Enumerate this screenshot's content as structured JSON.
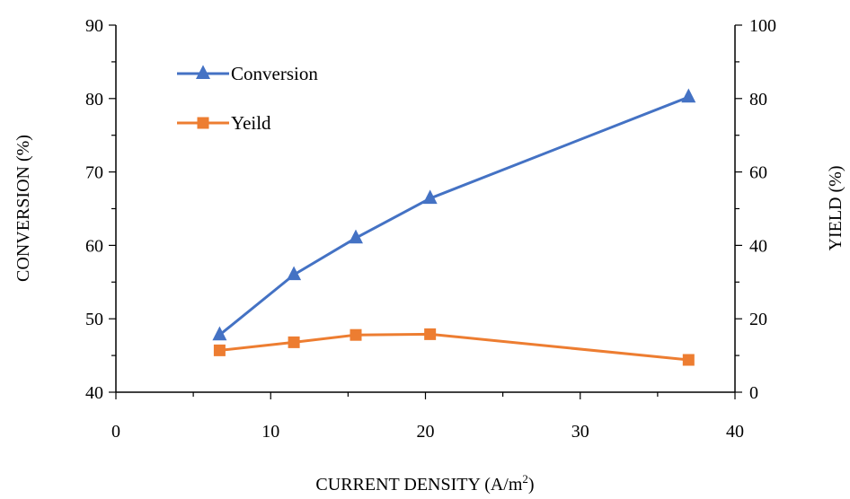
{
  "chart_data": {
    "type": "line",
    "xlabel": "CURRENT DENSITY (A/m",
    "xlabel_superscript": "2",
    "xlabel_suffix": ")",
    "ylabel_left": "CONVERSION (%)",
    "ylabel_right": "YIELD (%)",
    "xlim": [
      0,
      40
    ],
    "ylim_left": [
      40,
      90
    ],
    "ylim_right": [
      0,
      100
    ],
    "x_ticks": [
      "0",
      "10",
      "20",
      "30",
      "40"
    ],
    "y_left_ticks": [
      "40",
      "50",
      "60",
      "70",
      "80",
      "90"
    ],
    "y_right_ticks": [
      "0",
      "20",
      "40",
      "60",
      "80",
      "100"
    ],
    "grid": false,
    "legend_position": "top-left",
    "series": [
      {
        "name": "Conversion",
        "axis": "left",
        "color": "#4472C4",
        "marker": "triangle",
        "x": [
          6.7,
          11.5,
          15.5,
          20.3,
          37
        ],
        "y": [
          47.8,
          56,
          61,
          66.4,
          80.2
        ]
      },
      {
        "name": "Yeild",
        "axis": "right",
        "color": "#ED7D31",
        "marker": "square",
        "x": [
          6.7,
          11.5,
          15.5,
          20.3,
          37
        ],
        "y": [
          11.4,
          13.6,
          15.6,
          15.8,
          8.8
        ]
      }
    ]
  }
}
